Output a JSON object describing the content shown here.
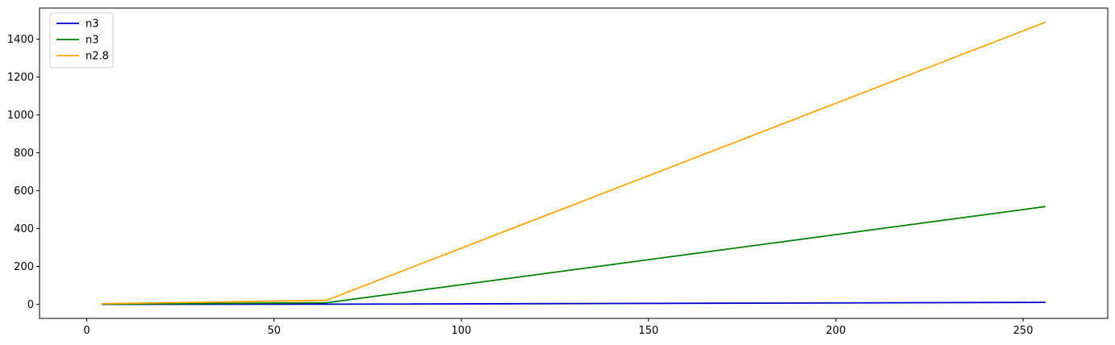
{
  "chart_data": {
    "type": "line",
    "title": "",
    "xlabel": "",
    "ylabel": "",
    "xlim": [
      -12.6,
      272.6
    ],
    "ylim": [
      -74.5,
      1564.5
    ],
    "xticks": [
      0,
      50,
      100,
      150,
      200,
      250
    ],
    "yticks": [
      0,
      200,
      400,
      600,
      800,
      1000,
      1200,
      1400
    ],
    "grid": false,
    "legend": "top-left",
    "x": [
      4,
      64,
      256
    ],
    "series": [
      {
        "name": "n3",
        "color": "#0000cc",
        "values": [
          0.1,
          0.5,
          10
        ]
      },
      {
        "name": "n3",
        "color": "#008000",
        "values": [
          0.5,
          8,
          516
        ]
      },
      {
        "name": "n2.8",
        "color": "#ffa500",
        "values": [
          3,
          21,
          1490
        ]
      }
    ]
  }
}
